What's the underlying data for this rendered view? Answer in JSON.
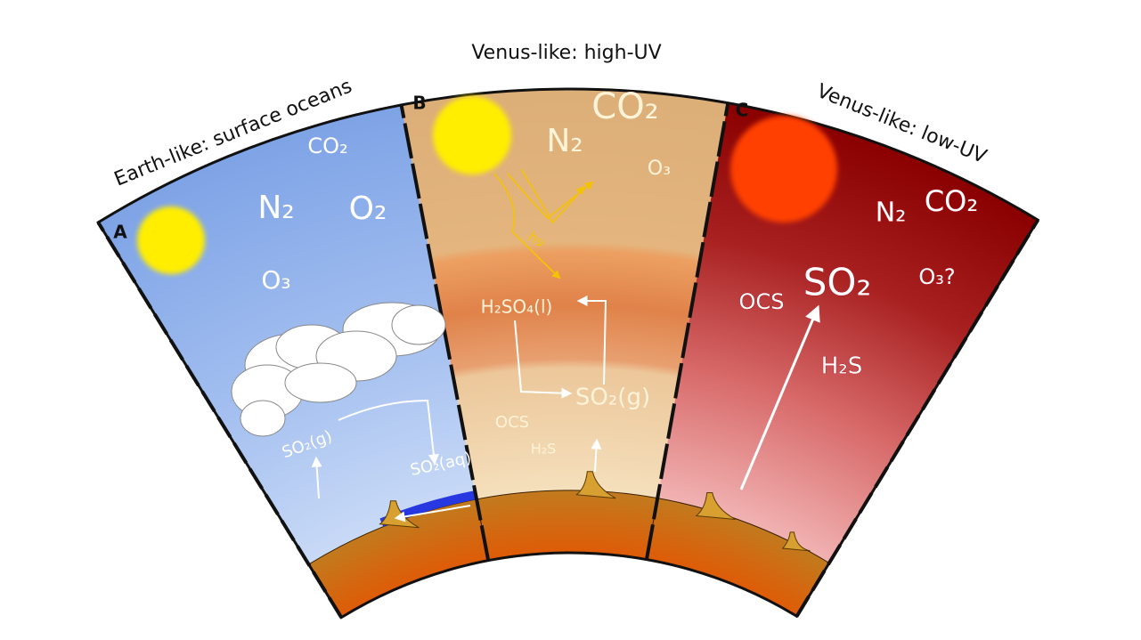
{
  "panels": [
    {
      "label": "A",
      "title": "Earth-like: surface oceans",
      "species": [
        "CO₂",
        "N₂",
        "O₂",
        "O₃",
        "SO₂(g)",
        "SO₂(aq)"
      ]
    },
    {
      "label": "B",
      "title": "Venus-like: high-UV",
      "species": [
        "CO₂",
        "N₂",
        "O₃",
        "hν",
        "H₂SO₄(l)",
        "SO₂(g)",
        "OCS",
        "H₂S"
      ]
    },
    {
      "label": "C",
      "title": "Venus-like: low-UV",
      "species": [
        "N₂",
        "CO₂",
        "SO₂",
        "OCS",
        "O₃?",
        "H₂S"
      ]
    }
  ]
}
